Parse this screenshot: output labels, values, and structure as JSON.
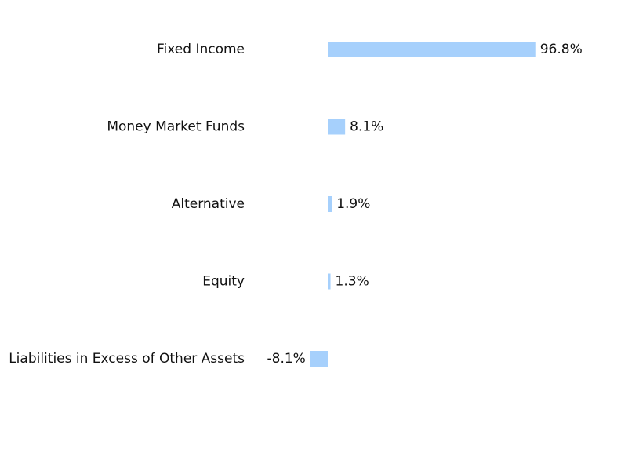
{
  "chart_data": {
    "type": "bar",
    "orientation": "horizontal",
    "categories": [
      "Fixed Income",
      "Money Market Funds",
      "Alternative",
      "Equity",
      "Liabilities in Excess of Other Assets"
    ],
    "values": [
      96.8,
      8.1,
      1.9,
      1.3,
      -8.1
    ],
    "value_labels": [
      "96.8%",
      "8.1%",
      "1.9%",
      "1.3%",
      "-8.1%"
    ],
    "bar_color": "#a6d0fc",
    "title": "",
    "xlabel": "",
    "ylabel": "",
    "grid": false,
    "legend": "none"
  }
}
